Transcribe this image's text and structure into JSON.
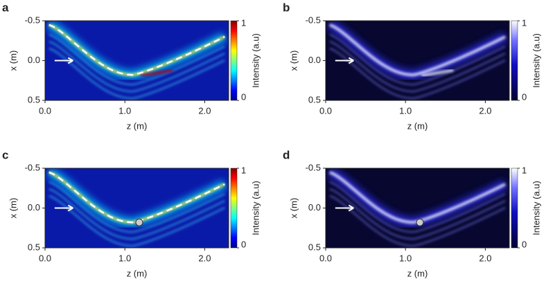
{
  "chart_data": [
    {
      "type": "heatmap",
      "panel": "a",
      "colormap": "jet",
      "dashed_path": true,
      "scatterer": false,
      "xlabel": "z (m)",
      "ylabel": "x (m)",
      "colorbar_label": "Intensity (a.u)",
      "xlim": [
        0,
        2.3
      ],
      "ylim": [
        -0.5,
        0.5
      ],
      "y_inverted": true,
      "xticks": [
        {
          "value": 0,
          "label": "0.0"
        },
        {
          "value": 1,
          "label": "1.0"
        },
        {
          "value": 2,
          "label": "2.0"
        }
      ],
      "yticks": [
        -0.5,
        {
          "value": 0,
          "label": "0.0"
        },
        0.5
      ],
      "clim": [
        0,
        1
      ],
      "cticks": [
        0,
        1
      ]
    },
    {
      "type": "heatmap",
      "panel": "b",
      "colormap": "blue-white",
      "dashed_path": false,
      "scatterer": false,
      "xlabel": "z (m)",
      "ylabel": "x (m)",
      "colorbar_label": "Intensity (a.u)",
      "xlim": [
        0,
        2.3
      ],
      "ylim": [
        -0.5,
        0.5
      ],
      "y_inverted": true,
      "xticks": [
        {
          "value": 0,
          "label": "0.0"
        },
        {
          "value": 1,
          "label": "1.0"
        },
        {
          "value": 2,
          "label": "2.0"
        }
      ],
      "yticks": [
        -0.5,
        {
          "value": 0,
          "label": "0.0"
        },
        0.5
      ],
      "clim": [
        0,
        1
      ],
      "cticks": [
        0,
        1
      ]
    },
    {
      "type": "heatmap",
      "panel": "c",
      "colormap": "jet",
      "dashed_path": true,
      "scatterer": true,
      "xlabel": "z (m)",
      "ylabel": "x (m)",
      "colorbar_label": "Intensity (a.u)",
      "xlim": [
        0,
        2.3
      ],
      "ylim": [
        -0.5,
        0.5
      ],
      "y_inverted": true,
      "xticks": [
        {
          "value": 0,
          "label": "0.0"
        },
        {
          "value": 1,
          "label": "1.0"
        },
        {
          "value": 2,
          "label": "2.0"
        }
      ],
      "yticks": [
        -0.5,
        {
          "value": 0,
          "label": "0.0"
        },
        0.5
      ],
      "clim": [
        0,
        1
      ],
      "cticks": [
        0,
        1
      ]
    },
    {
      "type": "heatmap",
      "panel": "d",
      "colormap": "blue-white",
      "dashed_path": false,
      "scatterer": true,
      "xlabel": "z (m)",
      "ylabel": "x (m)",
      "colorbar_label": "Intensity (a.u)",
      "xlim": [
        0,
        2.3
      ],
      "ylim": [
        -0.5,
        0.5
      ],
      "y_inverted": true,
      "xticks": [
        {
          "value": 0,
          "label": "0.0"
        },
        {
          "value": 1,
          "label": "1.0"
        },
        {
          "value": 2,
          "label": "2.0"
        }
      ],
      "yticks": [
        -0.5,
        {
          "value": 0,
          "label": "0.0"
        },
        0.5
      ],
      "clim": [
        0,
        1
      ],
      "cticks": [
        0,
        1
      ]
    }
  ]
}
